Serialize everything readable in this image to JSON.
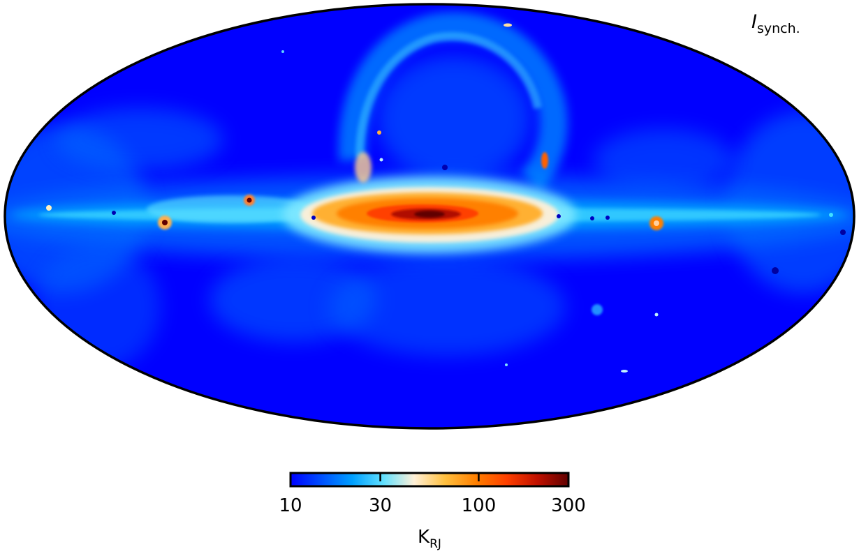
{
  "map": {
    "projection": "Mollweide",
    "title_main": "I",
    "title_sub": "synch.",
    "background_color": "#0000ff",
    "outline_color": "#000000"
  },
  "colorbar": {
    "scale": "log",
    "range": [
      10,
      300
    ],
    "ticks": [
      10,
      30,
      100,
      300
    ],
    "tick_labels": [
      "10",
      "30",
      "100",
      "300"
    ],
    "unit_main": "K",
    "unit_sub": "RJ",
    "colormap": [
      "#0000ff",
      "#0050ff",
      "#00a0ff",
      "#60e0ff",
      "#fff0d8",
      "#ffc040",
      "#ff8000",
      "#ff4000",
      "#c01000",
      "#600000"
    ]
  }
}
